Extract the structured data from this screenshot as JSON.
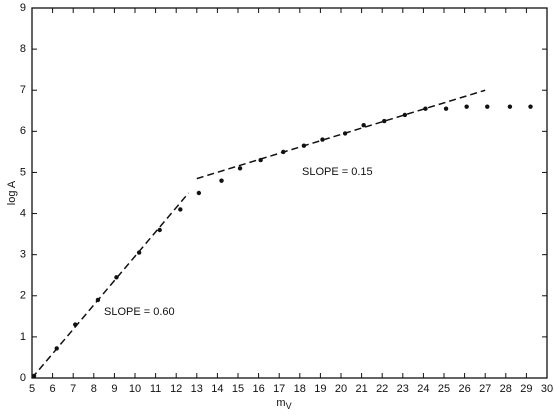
{
  "chart_data": {
    "type": "scatter",
    "x_label": "m",
    "x_label_sub": "V",
    "y_label": "log A",
    "xlim": [
      5,
      30
    ],
    "ylim": [
      0,
      9
    ],
    "xticks": [
      5,
      6,
      7,
      8,
      9,
      10,
      11,
      12,
      13,
      14,
      15,
      16,
      17,
      18,
      19,
      20,
      21,
      22,
      23,
      24,
      25,
      26,
      27,
      28,
      29,
      30
    ],
    "yticks": [
      0,
      1,
      2,
      3,
      4,
      5,
      6,
      7,
      8,
      9
    ],
    "color": "#111111",
    "series": [
      {
        "x": [
          5.1,
          6.2,
          7.1,
          8.2,
          9.1,
          10.2,
          11.2,
          12.2,
          13.1,
          14.2,
          15.1,
          16.1,
          17.2,
          18.2,
          19.1,
          20.2,
          21.1,
          22.1,
          23.1,
          24.1,
          25.1,
          26.1,
          27.1,
          28.2,
          29.2
        ],
        "values": [
          0.05,
          0.72,
          1.3,
          1.9,
          2.45,
          3.05,
          3.6,
          4.1,
          4.5,
          4.8,
          5.1,
          5.3,
          5.5,
          5.65,
          5.8,
          5.95,
          6.15,
          6.25,
          6.4,
          6.55,
          6.55,
          6.6,
          6.6,
          6.6,
          6.6
        ]
      }
    ],
    "lines": [
      {
        "x": [
          5,
          12.6
        ],
        "values": [
          0,
          4.5
        ]
      },
      {
        "x": [
          13,
          27
        ],
        "values": [
          4.85,
          7.0
        ]
      }
    ],
    "annotations": [
      "SLOPE = 0.60",
      "SLOPE = 0.15"
    ]
  }
}
